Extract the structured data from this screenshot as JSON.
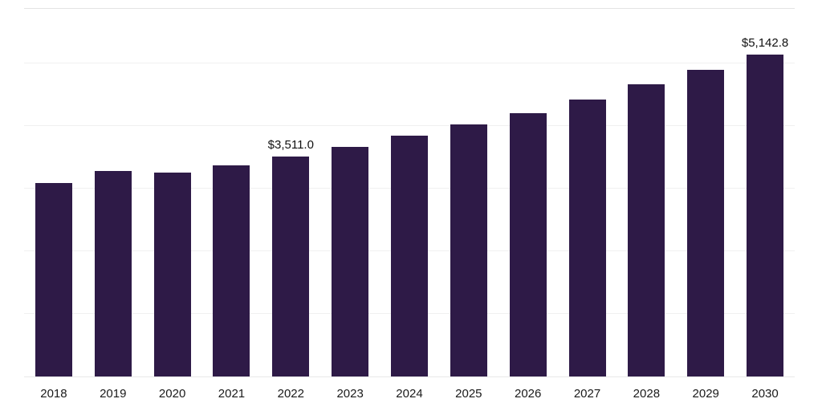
{
  "chart_data": {
    "type": "bar",
    "title": "",
    "xlabel": "",
    "ylabel": "",
    "categories": [
      "2018",
      "2019",
      "2020",
      "2021",
      "2022",
      "2023",
      "2024",
      "2025",
      "2026",
      "2027",
      "2028",
      "2029",
      "2030"
    ],
    "values": [
      3090,
      3280,
      3255,
      3370,
      3511.0,
      3660,
      3840,
      4020,
      4210,
      4425,
      4670,
      4900,
      5142.8
    ],
    "data_labels": {
      "2022": "$3,511.0",
      "2030": "$5,142.8"
    },
    "ylim": [
      0,
      5870
    ],
    "gridline_interval": 1000,
    "grid": "horizontal",
    "legend": "none",
    "bar_color": "#2e1a47",
    "background_color": "#ffffff"
  }
}
